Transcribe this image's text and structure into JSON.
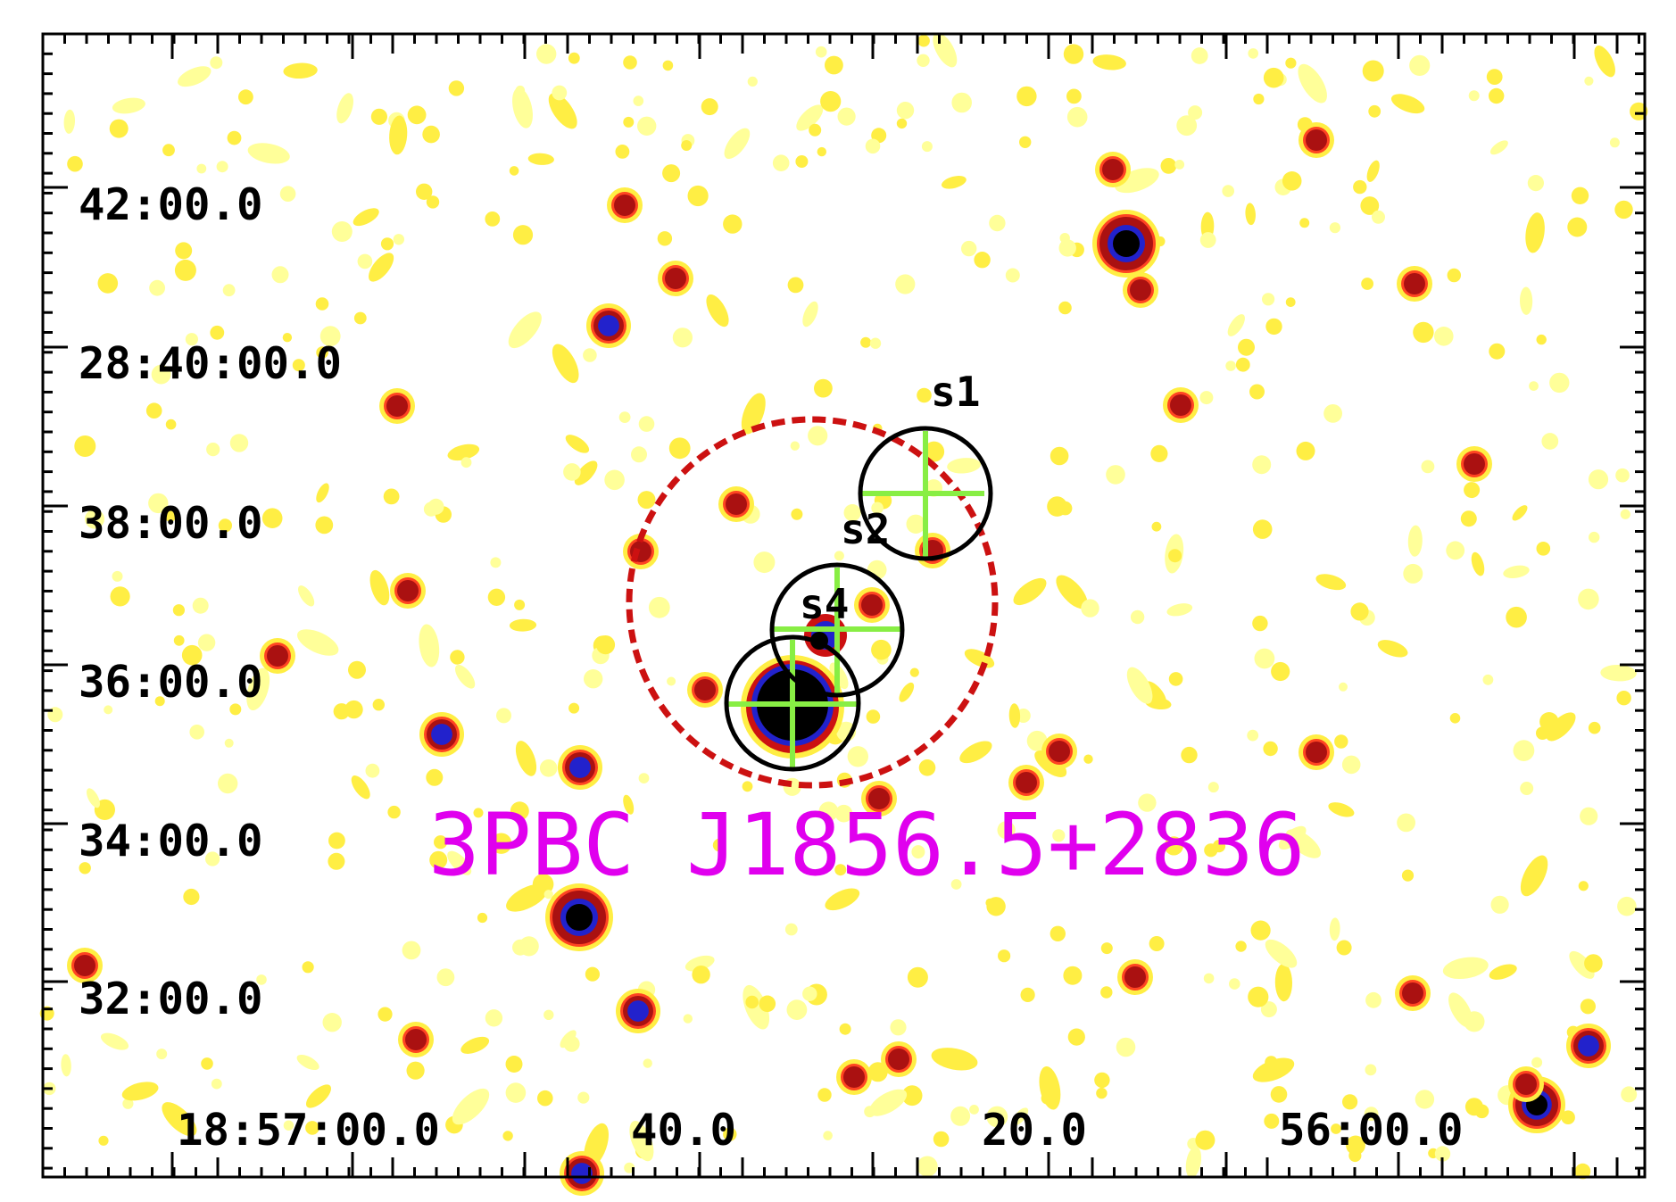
{
  "image": {
    "title": "3PBC J1856.5+2836",
    "colors": {
      "title": "#e000ee",
      "circle": "#000000",
      "cross": "#88ee44",
      "error_ellipse": "#cc1111",
      "frame": "#000000"
    },
    "y_axis_labels": [
      "42:00.0",
      "28:40:00.0",
      "38:00.0",
      "36:00.0",
      "34:00.0",
      "32:00.0"
    ],
    "x_axis_labels": [
      "18:57:00.0",
      "40.0",
      "20.0",
      "56:00.0"
    ],
    "sources": [
      {
        "label": "s1"
      },
      {
        "label": "s2"
      },
      {
        "label": "s4"
      },
      {
        "label": ""
      }
    ]
  }
}
